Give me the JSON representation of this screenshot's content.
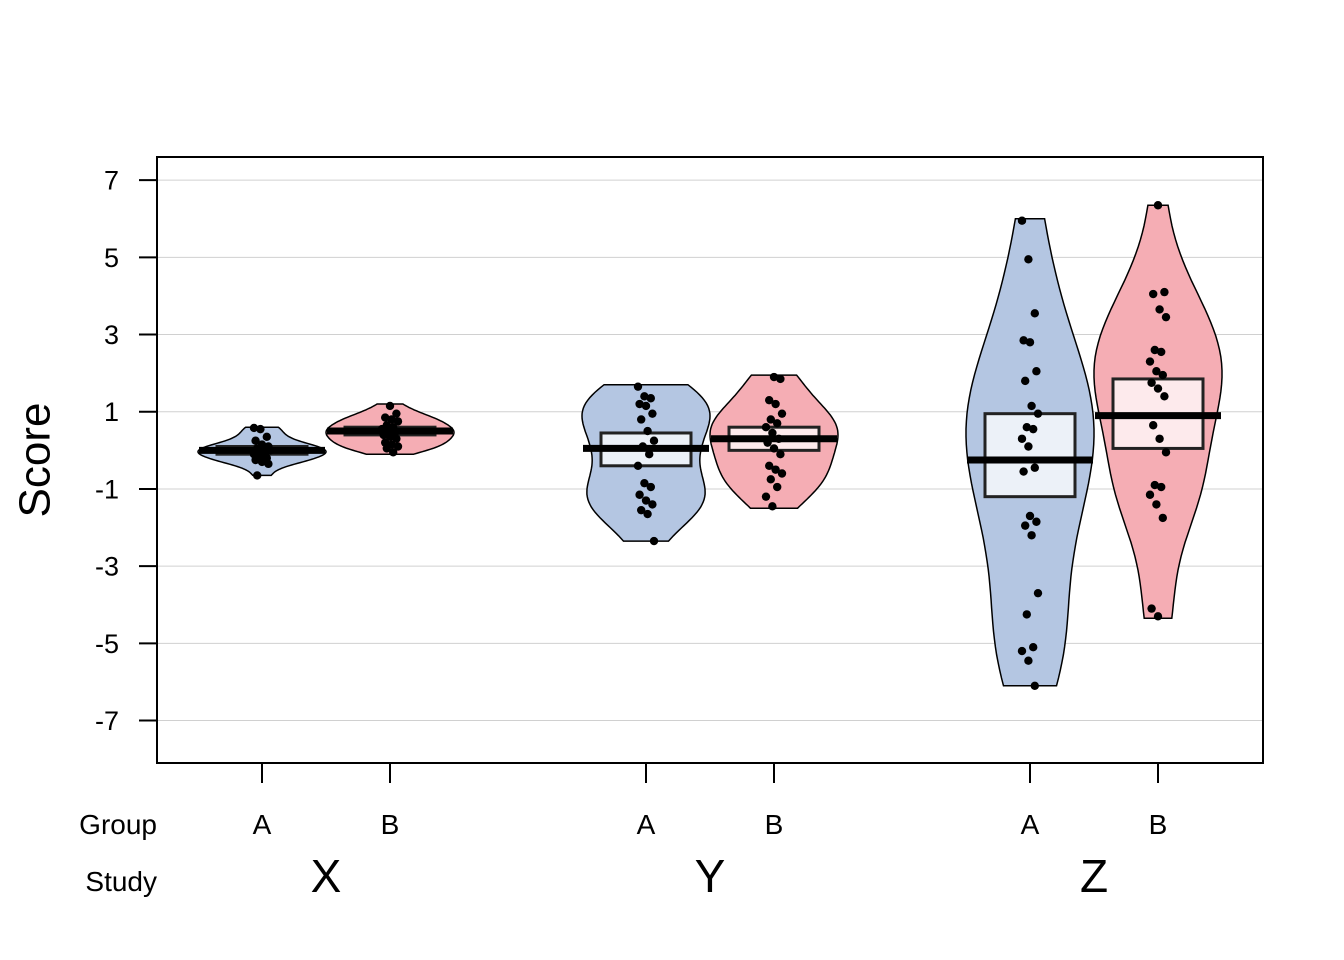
{
  "chart_data": {
    "type": "pirate",
    "ylabel": "Score",
    "ylim": [
      -8.1,
      7.6
    ],
    "yticks": [
      -7,
      -5,
      -3,
      -1,
      1,
      3,
      5,
      7
    ],
    "grid": true,
    "row_labels": {
      "group": "Group",
      "study": "Study"
    },
    "colors": {
      "A": "#b4c6e2",
      "B": "#f5adb4",
      "grid": "#d0d0d0",
      "box_fill": "#ffffff",
      "points": "#000000"
    },
    "studies": [
      {
        "name": "X",
        "groups": [
          {
            "name": "A",
            "mean": 0.0,
            "box": [
              -0.1,
              0.1
            ],
            "range": [
              -0.65,
              0.6
            ],
            "points": [
              0.58,
              0.55,
              0.35,
              0.25,
              0.15,
              0.1,
              0.05,
              0.03,
              0.0,
              -0.02,
              -0.05,
              -0.1,
              -0.15,
              -0.2,
              -0.25,
              -0.3,
              -0.35,
              -0.65
            ]
          },
          {
            "name": "B",
            "mean": 0.5,
            "box": [
              0.4,
              0.6
            ],
            "range": [
              -0.1,
              1.2
            ],
            "points": [
              1.15,
              0.95,
              0.85,
              0.8,
              0.75,
              0.65,
              0.6,
              0.55,
              0.5,
              0.45,
              0.4,
              0.35,
              0.3,
              0.2,
              0.15,
              0.1,
              0.05,
              -0.05
            ]
          }
        ]
      },
      {
        "name": "Y",
        "groups": [
          {
            "name": "A",
            "mean": 0.05,
            "box": [
              -0.4,
              0.45
            ],
            "range": [
              -2.35,
              1.7
            ],
            "points": [
              1.65,
              1.4,
              1.35,
              1.2,
              1.15,
              0.95,
              0.8,
              0.5,
              0.25,
              0.1,
              -0.1,
              -0.4,
              -0.85,
              -0.95,
              -1.15,
              -1.3,
              -1.4,
              -1.55,
              -1.65,
              -2.35
            ]
          },
          {
            "name": "B",
            "mean": 0.3,
            "box": [
              0.0,
              0.6
            ],
            "range": [
              -1.5,
              1.95
            ],
            "points": [
              1.9,
              1.85,
              1.3,
              1.2,
              0.95,
              0.8,
              0.7,
              0.6,
              0.45,
              0.3,
              0.2,
              0.05,
              -0.1,
              -0.4,
              -0.5,
              -0.6,
              -0.75,
              -0.95,
              -1.2,
              -1.45
            ]
          }
        ]
      },
      {
        "name": "Z",
        "groups": [
          {
            "name": "A",
            "mean": -0.25,
            "box": [
              -1.2,
              0.95
            ],
            "range": [
              -6.1,
              6.0
            ],
            "points": [
              5.95,
              4.95,
              3.55,
              2.85,
              2.8,
              2.05,
              1.8,
              1.15,
              0.95,
              0.6,
              0.55,
              0.3,
              0.1,
              -0.45,
              -0.55,
              -1.7,
              -1.85,
              -1.95,
              -2.2,
              -3.7,
              -4.25,
              -5.1,
              -5.2,
              -5.45,
              -6.1
            ]
          },
          {
            "name": "B",
            "mean": 0.9,
            "box": [
              0.05,
              1.85
            ],
            "range": [
              -4.35,
              6.35
            ],
            "points": [
              6.35,
              4.1,
              4.05,
              3.65,
              3.45,
              2.6,
              2.55,
              2.3,
              2.05,
              1.95,
              1.75,
              1.6,
              1.4,
              0.65,
              0.3,
              -0.05,
              -0.9,
              -0.95,
              -1.15,
              -1.4,
              -1.75,
              -4.1,
              -4.3
            ]
          }
        ]
      }
    ]
  }
}
